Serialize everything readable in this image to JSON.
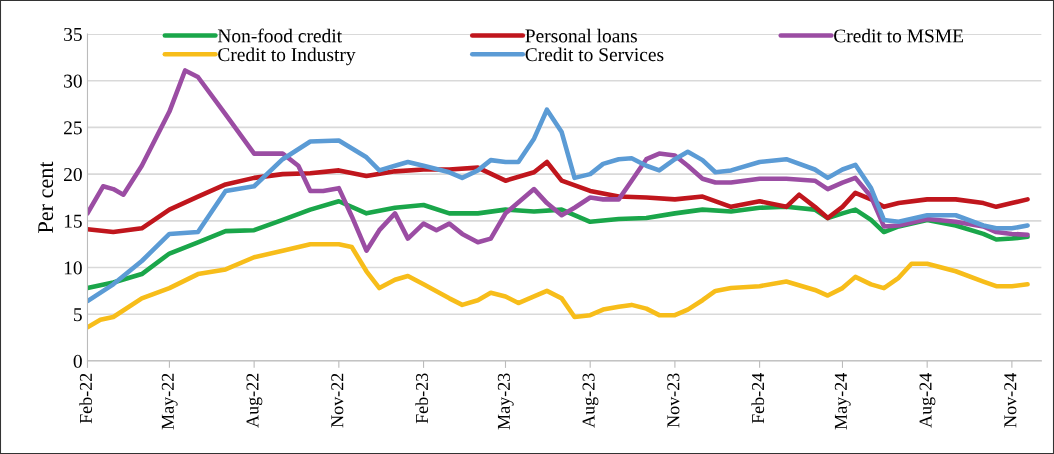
{
  "chart_data": {
    "type": "line",
    "ylabel": "Per cent",
    "ylim": [
      0,
      35
    ],
    "yticks": [
      0,
      5,
      10,
      15,
      20,
      25,
      30,
      35
    ],
    "xlim": [
      "2022-02-01",
      "2024-12-03"
    ],
    "xticks": [
      {
        "value": "2022-02-01",
        "label": "Feb-22"
      },
      {
        "value": "2022-05-01",
        "label": "May-22"
      },
      {
        "value": "2022-08-01",
        "label": "Aug-22"
      },
      {
        "value": "2022-11-01",
        "label": "Nov-22"
      },
      {
        "value": "2023-02-01",
        "label": "Feb-23"
      },
      {
        "value": "2023-05-01",
        "label": "May-23"
      },
      {
        "value": "2023-08-01",
        "label": "Aug-23"
      },
      {
        "value": "2023-11-01",
        "label": "Nov-23"
      },
      {
        "value": "2024-02-01",
        "label": "Feb-24"
      },
      {
        "value": "2024-05-01",
        "label": "May-24"
      },
      {
        "value": "2024-08-01",
        "label": "Aug-24"
      },
      {
        "value": "2024-11-01",
        "label": "Nov-24"
      }
    ],
    "grid": "y",
    "legend": "top",
    "marker": "none",
    "line_style": "solid",
    "series": [
      {
        "name": "Non-food credit",
        "color": "#1aa64a",
        "x": [
          "2022-02-01",
          "2022-03-01",
          "2022-04-01",
          "2022-05-01",
          "2022-06-01",
          "2022-07-01",
          "2022-08-01",
          "2022-09-01",
          "2022-10-01",
          "2022-11-01",
          "2022-12-01",
          "2023-01-01",
          "2023-02-01",
          "2023-03-01",
          "2023-04-01",
          "2023-05-01",
          "2023-06-01",
          "2023-07-01",
          "2023-08-01",
          "2023-09-01",
          "2023-10-01",
          "2023-11-01",
          "2023-12-01",
          "2024-01-01",
          "2024-02-01",
          "2024-03-01",
          "2024-04-01",
          "2024-04-15",
          "2024-05-01",
          "2024-05-15",
          "2024-06-01",
          "2024-06-15",
          "2024-07-01",
          "2024-08-01",
          "2024-09-01",
          "2024-10-01",
          "2024-10-15",
          "2024-11-01",
          "2024-11-18"
        ],
        "values": [
          7.8,
          8.4,
          9.3,
          11.5,
          12.7,
          13.9,
          14.0,
          15.1,
          16.2,
          17.1,
          15.8,
          16.4,
          16.7,
          15.8,
          15.8,
          16.2,
          16.0,
          16.2,
          14.9,
          15.2,
          15.3,
          15.8,
          16.2,
          16.0,
          16.4,
          16.5,
          16.2,
          15.3,
          15.8,
          16.2,
          15.1,
          13.8,
          14.4,
          15.1,
          14.5,
          13.6,
          13.0,
          13.1,
          13.3
        ]
      },
      {
        "name": "Personal loans",
        "color": "#c0161d",
        "x": [
          "2022-02-01",
          "2022-03-01",
          "2022-04-01",
          "2022-05-01",
          "2022-06-01",
          "2022-07-01",
          "2022-08-01",
          "2022-09-01",
          "2022-10-01",
          "2022-11-01",
          "2022-12-01",
          "2023-01-01",
          "2023-02-01",
          "2023-03-01",
          "2023-04-01",
          "2023-05-01",
          "2023-06-01",
          "2023-06-15",
          "2023-07-01",
          "2023-08-01",
          "2023-09-01",
          "2023-10-01",
          "2023-11-01",
          "2023-12-01",
          "2024-01-01",
          "2024-02-01",
          "2024-03-01",
          "2024-03-15",
          "2024-04-01",
          "2024-04-15",
          "2024-05-01",
          "2024-05-15",
          "2024-06-01",
          "2024-06-15",
          "2024-07-01",
          "2024-08-01",
          "2024-09-01",
          "2024-10-01",
          "2024-10-15",
          "2024-11-01",
          "2024-11-18"
        ],
        "values": [
          14.1,
          13.8,
          14.2,
          16.2,
          17.6,
          18.9,
          19.6,
          20.0,
          20.1,
          20.4,
          19.8,
          20.3,
          20.5,
          20.5,
          20.7,
          19.3,
          20.2,
          21.3,
          19.3,
          18.2,
          17.6,
          17.5,
          17.3,
          17.6,
          16.5,
          17.1,
          16.5,
          17.8,
          16.5,
          15.3,
          16.5,
          18.0,
          17.3,
          16.5,
          16.9,
          17.3,
          17.3,
          16.9,
          16.5,
          16.9,
          17.3
        ]
      },
      {
        "name": "Credit to MSME",
        "color": "#9b4da3",
        "x": [
          "2022-02-01",
          "2022-02-18",
          "2022-03-01",
          "2022-03-12",
          "2022-04-01",
          "2022-05-01",
          "2022-05-18",
          "2022-06-01",
          "2022-07-01",
          "2022-08-01",
          "2022-09-01",
          "2022-09-18",
          "2022-10-01",
          "2022-10-15",
          "2022-11-01",
          "2022-11-15",
          "2022-12-01",
          "2022-12-15",
          "2023-01-01",
          "2023-01-15",
          "2023-02-01",
          "2023-02-15",
          "2023-03-01",
          "2023-03-15",
          "2023-04-01",
          "2023-04-15",
          "2023-05-01",
          "2023-06-01",
          "2023-06-15",
          "2023-07-01",
          "2023-07-15",
          "2023-08-01",
          "2023-08-15",
          "2023-09-01",
          "2023-09-15",
          "2023-10-01",
          "2023-10-15",
          "2023-11-01",
          "2023-11-15",
          "2023-12-01",
          "2023-12-15",
          "2024-01-01",
          "2024-02-01",
          "2024-03-01",
          "2024-04-01",
          "2024-04-15",
          "2024-05-01",
          "2024-05-15",
          "2024-06-01",
          "2024-06-15",
          "2024-07-01",
          "2024-08-01",
          "2024-09-01",
          "2024-10-01",
          "2024-10-15",
          "2024-11-01",
          "2024-11-18"
        ],
        "values": [
          15.8,
          18.7,
          18.4,
          17.8,
          20.9,
          26.7,
          31.1,
          30.4,
          26.4,
          22.2,
          22.2,
          20.9,
          18.2,
          18.2,
          18.5,
          15.5,
          11.8,
          14.0,
          15.8,
          13.1,
          14.7,
          14.0,
          14.7,
          13.6,
          12.7,
          13.1,
          15.8,
          18.4,
          16.9,
          15.6,
          16.4,
          17.5,
          17.3,
          17.3,
          19.3,
          21.6,
          22.2,
          22.0,
          20.9,
          19.5,
          19.1,
          19.1,
          19.5,
          19.5,
          19.3,
          18.4,
          19.1,
          19.6,
          17.6,
          14.4,
          14.5,
          15.2,
          14.9,
          14.4,
          13.8,
          13.6,
          13.5
        ]
      },
      {
        "name": "Credit to Industry",
        "color": "#f7bd1a",
        "x": [
          "2022-02-01",
          "2022-02-15",
          "2022-03-01",
          "2022-04-01",
          "2022-05-01",
          "2022-06-01",
          "2022-07-01",
          "2022-08-01",
          "2022-09-01",
          "2022-10-01",
          "2022-11-01",
          "2022-11-15",
          "2022-12-01",
          "2022-12-15",
          "2023-01-01",
          "2023-01-15",
          "2023-02-01",
          "2023-03-01",
          "2023-03-15",
          "2023-04-01",
          "2023-04-15",
          "2023-05-01",
          "2023-05-15",
          "2023-06-01",
          "2023-06-15",
          "2023-07-01",
          "2023-07-15",
          "2023-08-01",
          "2023-08-15",
          "2023-09-01",
          "2023-09-15",
          "2023-10-01",
          "2023-10-15",
          "2023-11-01",
          "2023-11-15",
          "2023-12-01",
          "2023-12-15",
          "2024-01-01",
          "2024-02-01",
          "2024-03-01",
          "2024-04-01",
          "2024-04-15",
          "2024-05-01",
          "2024-05-15",
          "2024-06-01",
          "2024-06-15",
          "2024-07-01",
          "2024-07-15",
          "2024-08-01",
          "2024-09-01",
          "2024-10-01",
          "2024-10-15",
          "2024-11-01",
          "2024-11-18"
        ],
        "values": [
          3.6,
          4.4,
          4.7,
          6.7,
          7.8,
          9.3,
          9.8,
          11.1,
          11.8,
          12.5,
          12.5,
          12.2,
          9.6,
          7.8,
          8.7,
          9.1,
          8.2,
          6.7,
          6.0,
          6.5,
          7.3,
          6.9,
          6.2,
          6.9,
          7.5,
          6.7,
          4.7,
          4.9,
          5.5,
          5.8,
          6.0,
          5.6,
          4.9,
          4.9,
          5.5,
          6.5,
          7.5,
          7.8,
          8.0,
          8.5,
          7.6,
          7.0,
          7.8,
          9.0,
          8.2,
          7.8,
          8.9,
          10.4,
          10.4,
          9.6,
          8.5,
          8.0,
          8.0,
          8.2
        ]
      },
      {
        "name": "Credit to Services",
        "color": "#5b9bd5",
        "x": [
          "2022-02-01",
          "2022-03-01",
          "2022-04-01",
          "2022-05-01",
          "2022-06-01",
          "2022-07-01",
          "2022-08-01",
          "2022-09-01",
          "2022-10-01",
          "2022-11-01",
          "2022-12-01",
          "2022-12-15",
          "2023-01-01",
          "2023-01-15",
          "2023-02-01",
          "2023-03-01",
          "2023-03-15",
          "2023-04-01",
          "2023-04-15",
          "2023-05-01",
          "2023-05-15",
          "2023-06-01",
          "2023-06-15",
          "2023-07-01",
          "2023-07-15",
          "2023-08-01",
          "2023-08-15",
          "2023-09-01",
          "2023-09-15",
          "2023-10-01",
          "2023-10-15",
          "2023-11-01",
          "2023-11-15",
          "2023-12-01",
          "2023-12-15",
          "2024-01-01",
          "2024-02-01",
          "2024-03-01",
          "2024-04-01",
          "2024-04-15",
          "2024-05-01",
          "2024-05-15",
          "2024-06-01",
          "2024-06-15",
          "2024-07-01",
          "2024-08-01",
          "2024-09-01",
          "2024-10-01",
          "2024-10-15",
          "2024-11-01",
          "2024-11-18"
        ],
        "values": [
          6.4,
          8.2,
          10.7,
          13.6,
          13.8,
          18.2,
          18.7,
          21.6,
          23.5,
          23.6,
          21.8,
          20.4,
          20.9,
          21.3,
          20.9,
          20.2,
          19.6,
          20.4,
          21.5,
          21.3,
          21.3,
          23.8,
          26.9,
          24.5,
          19.6,
          20.0,
          21.1,
          21.6,
          21.7,
          20.9,
          20.4,
          21.6,
          22.4,
          21.5,
          20.2,
          20.4,
          21.3,
          21.6,
          20.5,
          19.6,
          20.5,
          21.0,
          18.5,
          15.1,
          14.9,
          15.6,
          15.6,
          14.5,
          14.2,
          14.2,
          14.5
        ]
      }
    ]
  }
}
